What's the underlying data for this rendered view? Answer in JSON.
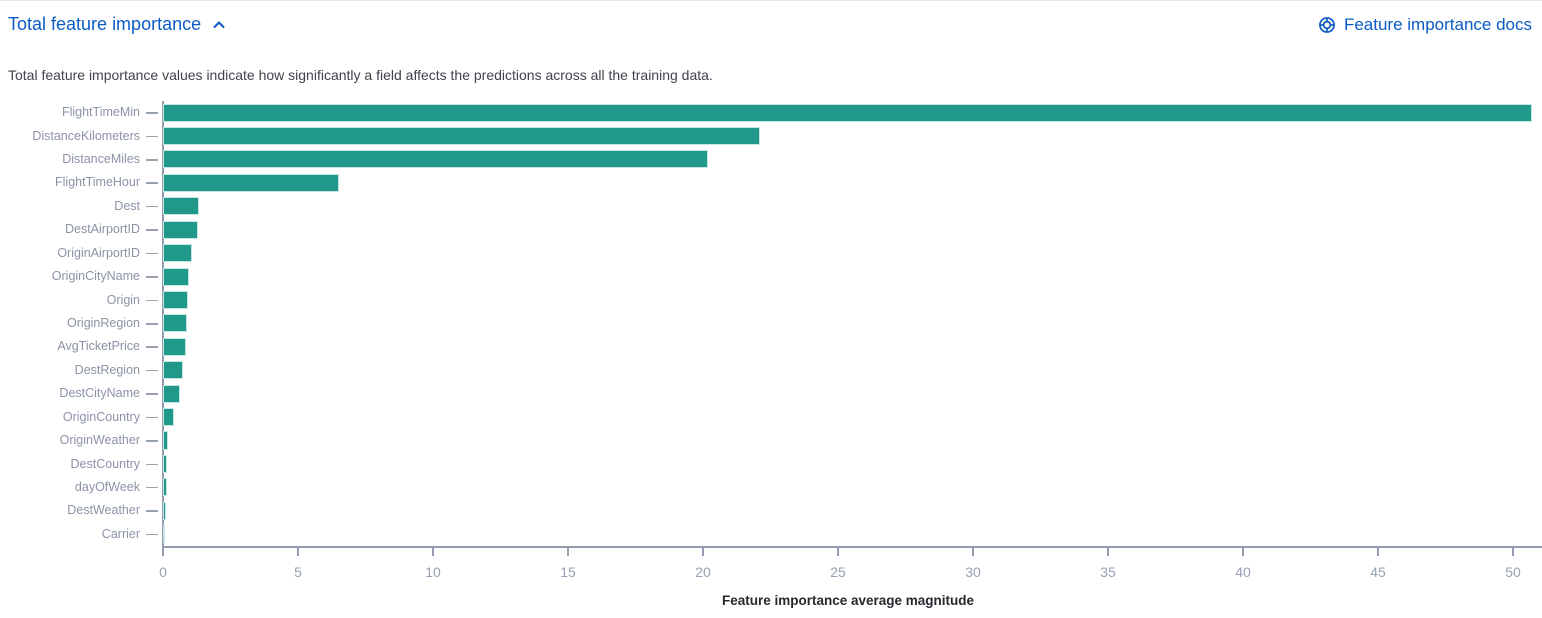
{
  "header": {
    "title": "Total feature importance",
    "collapse_icon": "chevron-up",
    "docs_link_label": "Feature importance docs",
    "docs_icon": "lifering-help",
    "link_color": "#0b5cc4"
  },
  "description": "Total feature importance values indicate how significantly a field affects the predictions across all the training data.",
  "chart_data": {
    "type": "bar",
    "orientation": "horizontal",
    "title": "",
    "xlabel": "Feature importance average magnitude",
    "ylabel": "",
    "categories": [
      "FlightTimeMin",
      "DistanceKilometers",
      "DistanceMiles",
      "FlightTimeHour",
      "Dest",
      "DestAirportID",
      "OriginAirportID",
      "OriginCityName",
      "Origin",
      "OriginRegion",
      "AvgTicketPrice",
      "DestRegion",
      "DestCityName",
      "OriginCountry",
      "OriginWeather",
      "DestCountry",
      "dayOfWeek",
      "DestWeather",
      "Carrier"
    ],
    "values": [
      50.7,
      22.1,
      20.2,
      6.5,
      1.33,
      1.3,
      1.07,
      0.96,
      0.93,
      0.89,
      0.85,
      0.74,
      0.63,
      0.41,
      0.19,
      0.15,
      0.14,
      0.12,
      0.03
    ],
    "x_ticks": [
      0,
      5,
      10,
      15,
      20,
      25,
      30,
      35,
      40,
      45,
      50
    ],
    "xlim": [
      0,
      51.1
    ],
    "grid": false,
    "legend": false,
    "bar_color": "#21998a",
    "axis_color": "#939cae",
    "tick_label_color": "#98a1b3",
    "category_label_color": "#8b93a6"
  }
}
